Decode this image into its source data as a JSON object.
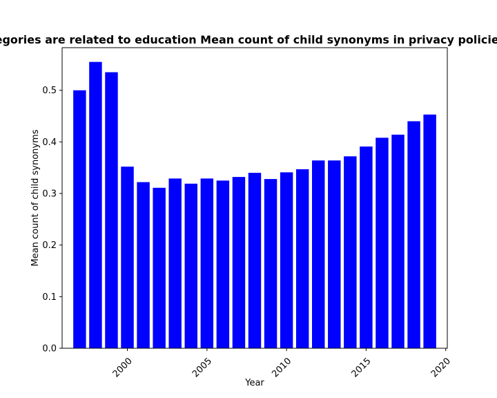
{
  "chart_data": {
    "type": "bar",
    "title": "of all categories are related to education Mean count of child synonyms in privacy policies over time",
    "xlabel": "Year",
    "ylabel": "Mean count of child synonyms",
    "x": [
      1997,
      1998,
      1999,
      2000,
      2001,
      2002,
      2003,
      2004,
      2005,
      2006,
      2007,
      2008,
      2009,
      2010,
      2011,
      2012,
      2013,
      2014,
      2015,
      2016,
      2017,
      2018,
      2019
    ],
    "values": [
      0.5,
      0.555,
      0.535,
      0.352,
      0.322,
      0.311,
      0.329,
      0.319,
      0.329,
      0.325,
      0.332,
      0.34,
      0.328,
      0.341,
      0.347,
      0.364,
      0.364,
      0.372,
      0.391,
      0.408,
      0.414,
      0.44,
      0.453
    ],
    "xlim": [
      1995.9,
      2020.1
    ],
    "ylim": [
      0,
      0.5826
    ],
    "xticks": [
      2000,
      2005,
      2010,
      2015,
      2020
    ],
    "yticks": [
      0.0,
      0.1,
      0.2,
      0.3,
      0.4,
      0.5
    ],
    "ytick_labels": [
      "0.0",
      "0.1",
      "0.2",
      "0.3",
      "0.4",
      "0.5"
    ],
    "bar_color": "#0000ff",
    "grid": false,
    "legend": "none"
  }
}
